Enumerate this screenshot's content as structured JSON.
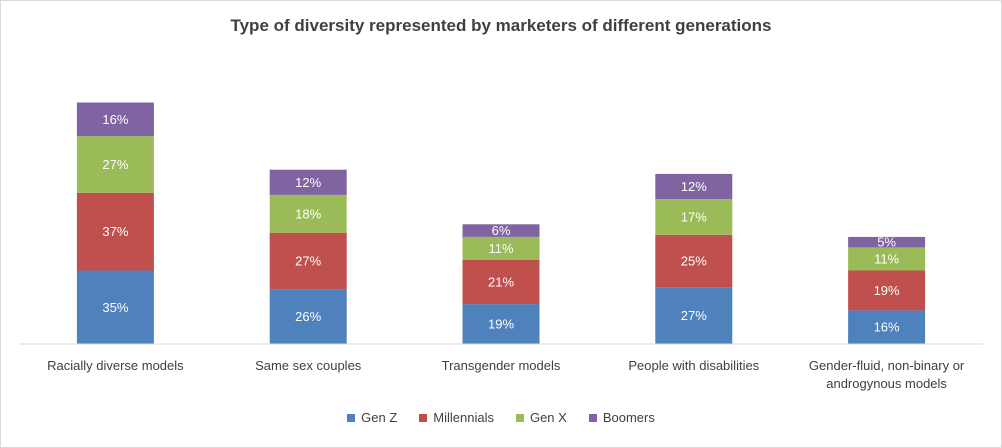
{
  "chart_data": {
    "type": "bar",
    "stacked": true,
    "title": "Type of diversity represented by marketers of different generations",
    "xlabel": "",
    "ylabel": "",
    "ylim": [
      0,
      120
    ],
    "grid": false,
    "legend_position": "bottom",
    "categories": [
      "Racially diverse models",
      "Same sex couples",
      "Transgender models",
      "People with disabilities",
      "Gender-fluid, non-binary or androgynous models"
    ],
    "series": [
      {
        "name": "Gen Z",
        "color": "#4f81bd",
        "values": [
          35,
          26,
          19,
          27,
          16
        ],
        "labels": [
          "35%",
          "26%",
          "19%",
          "27%",
          "16%"
        ]
      },
      {
        "name": "Millennials",
        "color": "#c0504d",
        "values": [
          37,
          27,
          21,
          25,
          19
        ],
        "labels": [
          "37%",
          "27%",
          "21%",
          "25%",
          "19%"
        ]
      },
      {
        "name": "Gen X",
        "color": "#9bbb59",
        "values": [
          27,
          18,
          11,
          17,
          11
        ],
        "labels": [
          "27%",
          "18%",
          "11%",
          "17%",
          "11%"
        ]
      },
      {
        "name": "Boomers",
        "color": "#8064a2",
        "values": [
          16,
          12,
          6,
          12,
          5
        ],
        "labels": [
          "16%",
          "12%",
          "6%",
          "12%",
          "5%"
        ]
      }
    ]
  }
}
